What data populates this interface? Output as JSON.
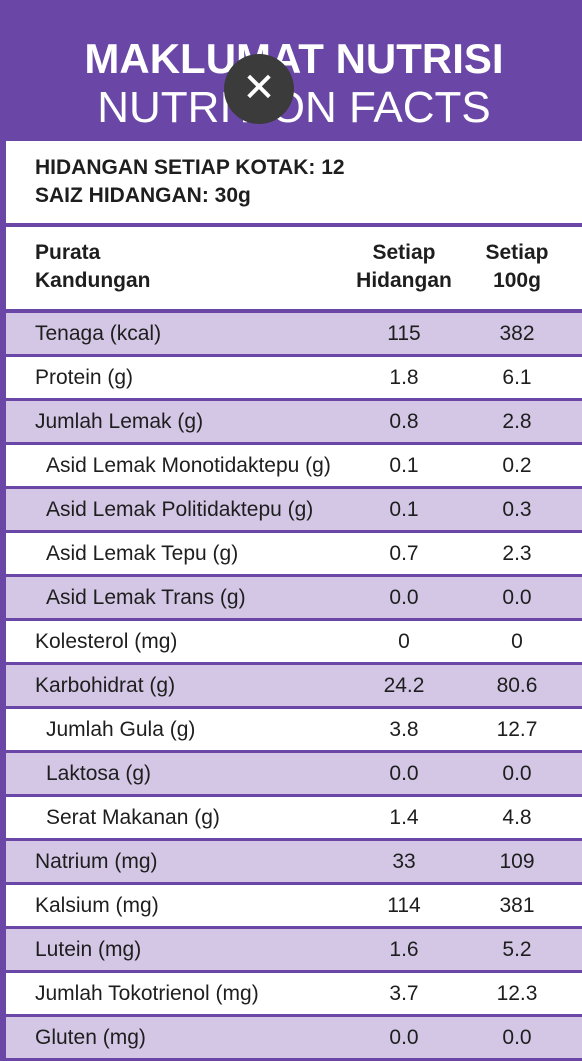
{
  "header": {
    "title_ms": "MAKLUMAT NUTRISI",
    "title_en": "NUTRITION FACTS"
  },
  "serving": {
    "per_box": "HIDANGAN SETIAP KOTAK: 12",
    "size": "SAIZ HIDANGAN: 30g"
  },
  "columns": {
    "name": "Purata\nKandungan",
    "per_serving": "Setiap\nHidangan",
    "per_100g": "Setiap\n100g"
  },
  "rows": [
    {
      "name": "Tenaga (kcal)",
      "per_serving": "115",
      "per_100g": "382",
      "indent": 0
    },
    {
      "name": "Protein (g)",
      "per_serving": "1.8",
      "per_100g": "6.1",
      "indent": 0
    },
    {
      "name": "Jumlah Lemak (g)",
      "per_serving": "0.8",
      "per_100g": "2.8",
      "indent": 0
    },
    {
      "name": "Asid Lemak Monotidaktepu (g)",
      "per_serving": "0.1",
      "per_100g": "0.2",
      "indent": 1
    },
    {
      "name": "Asid Lemak Politidaktepu (g)",
      "per_serving": "0.1",
      "per_100g": "0.3",
      "indent": 1
    },
    {
      "name": "Asid Lemak Tepu (g)",
      "per_serving": "0.7",
      "per_100g": "2.3",
      "indent": 1
    },
    {
      "name": "Asid Lemak Trans (g)",
      "per_serving": "0.0",
      "per_100g": "0.0",
      "indent": 1
    },
    {
      "name": "Kolesterol (mg)",
      "per_serving": "0",
      "per_100g": "0",
      "indent": 0
    },
    {
      "name": "Karbohidrat (g)",
      "per_serving": "24.2",
      "per_100g": "80.6",
      "indent": 0
    },
    {
      "name": "Jumlah Gula (g)",
      "per_serving": "3.8",
      "per_100g": "12.7",
      "indent": 1
    },
    {
      "name": "Laktosa (g)",
      "per_serving": "0.0",
      "per_100g": "0.0",
      "indent": 1
    },
    {
      "name": "Serat Makanan (g)",
      "per_serving": "1.4",
      "per_100g": "4.8",
      "indent": 1
    },
    {
      "name": "Natrium (mg)",
      "per_serving": "33",
      "per_100g": "109",
      "indent": 0
    },
    {
      "name": "Kalsium (mg)",
      "per_serving": "114",
      "per_100g": "381",
      "indent": 0
    },
    {
      "name": "Lutein (mg)",
      "per_serving": "1.6",
      "per_100g": "5.2",
      "indent": 0
    },
    {
      "name": "Jumlah Tokotrienol (mg)",
      "per_serving": "3.7",
      "per_100g": "12.3",
      "indent": 0
    },
    {
      "name": "Gluten (mg)",
      "per_serving": "0.0",
      "per_100g": "0.0",
      "indent": 0
    }
  ],
  "close_icon": "close-icon",
  "colors": {
    "brand_purple": "#6a47a6",
    "row_tint": "#d3c7e5"
  }
}
